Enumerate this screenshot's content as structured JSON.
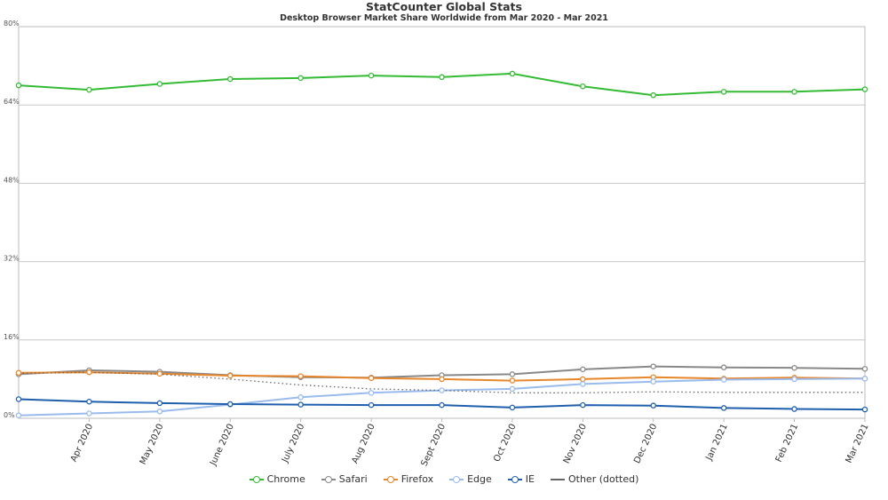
{
  "chart_data": {
    "type": "line",
    "title": "StatCounter Global Stats",
    "subtitle": "Desktop Browser Market Share Worldwide from Mar 2020 - Mar 2021",
    "xlabel": "",
    "ylabel": "",
    "categories": [
      "Mar 2020",
      "Apr 2020",
      "May 2020",
      "June 2020",
      "July 2020",
      "Aug 2020",
      "Sept 2020",
      "Oct 2020",
      "Nov 2020",
      "Dec 2020",
      "Jan 2021",
      "Feb 2021",
      "Mar 2021"
    ],
    "x_tick_labels": [
      "Apr 2020",
      "May 2020",
      "June 2020",
      "July 2020",
      "Aug 2020",
      "Sept 2020",
      "Oct 2020",
      "Nov 2020",
      "Dec 2020",
      "Jan 2021",
      "Feb 2021",
      "Mar 2021"
    ],
    "y_ticks": [
      0,
      16,
      32,
      48,
      64,
      80
    ],
    "y_tick_labels": [
      "0%",
      "16%",
      "32%",
      "48%",
      "64%",
      "80%"
    ],
    "ylim": [
      0,
      80
    ],
    "grid": true,
    "legend_position": "bottom",
    "series": [
      {
        "name": "Chrome",
        "color": "#33bb33",
        "marker": true,
        "dotted": false,
        "values": [
          68.0,
          67.1,
          68.3,
          69.3,
          69.5,
          70.0,
          69.7,
          70.4,
          67.8,
          66.0,
          66.7,
          66.7,
          67.2
        ]
      },
      {
        "name": "Safari",
        "color": "#888888",
        "marker": true,
        "dotted": false,
        "values": [
          9.0,
          9.8,
          9.5,
          8.8,
          8.4,
          8.3,
          8.8,
          9.0,
          10.0,
          10.6,
          10.4,
          10.3,
          10.1
        ]
      },
      {
        "name": "Firefox",
        "color": "#e8862a",
        "marker": true,
        "dotted": false,
        "values": [
          9.3,
          9.4,
          9.1,
          8.7,
          8.6,
          8.2,
          8.0,
          7.7,
          8.0,
          8.4,
          8.1,
          8.3,
          8.1
        ]
      },
      {
        "name": "Edge",
        "color": "#99bbee",
        "marker": true,
        "dotted": false,
        "values": [
          0.6,
          1.0,
          1.4,
          2.8,
          4.3,
          5.2,
          5.7,
          6.0,
          7.0,
          7.5,
          7.9,
          8.0,
          8.1
        ]
      },
      {
        "name": "IE",
        "color": "#1f5fae",
        "marker": true,
        "dotted": false,
        "values": [
          3.9,
          3.4,
          3.1,
          2.9,
          2.8,
          2.7,
          2.7,
          2.2,
          2.7,
          2.6,
          2.1,
          1.9,
          1.8
        ]
      },
      {
        "name": "Other (dotted)",
        "color": "#666666",
        "marker": false,
        "dotted": true,
        "values": [
          9.2,
          9.4,
          9.0,
          8.0,
          6.8,
          6.0,
          5.7,
          5.2,
          5.2,
          5.4,
          5.3,
          5.3,
          5.3
        ]
      }
    ]
  }
}
